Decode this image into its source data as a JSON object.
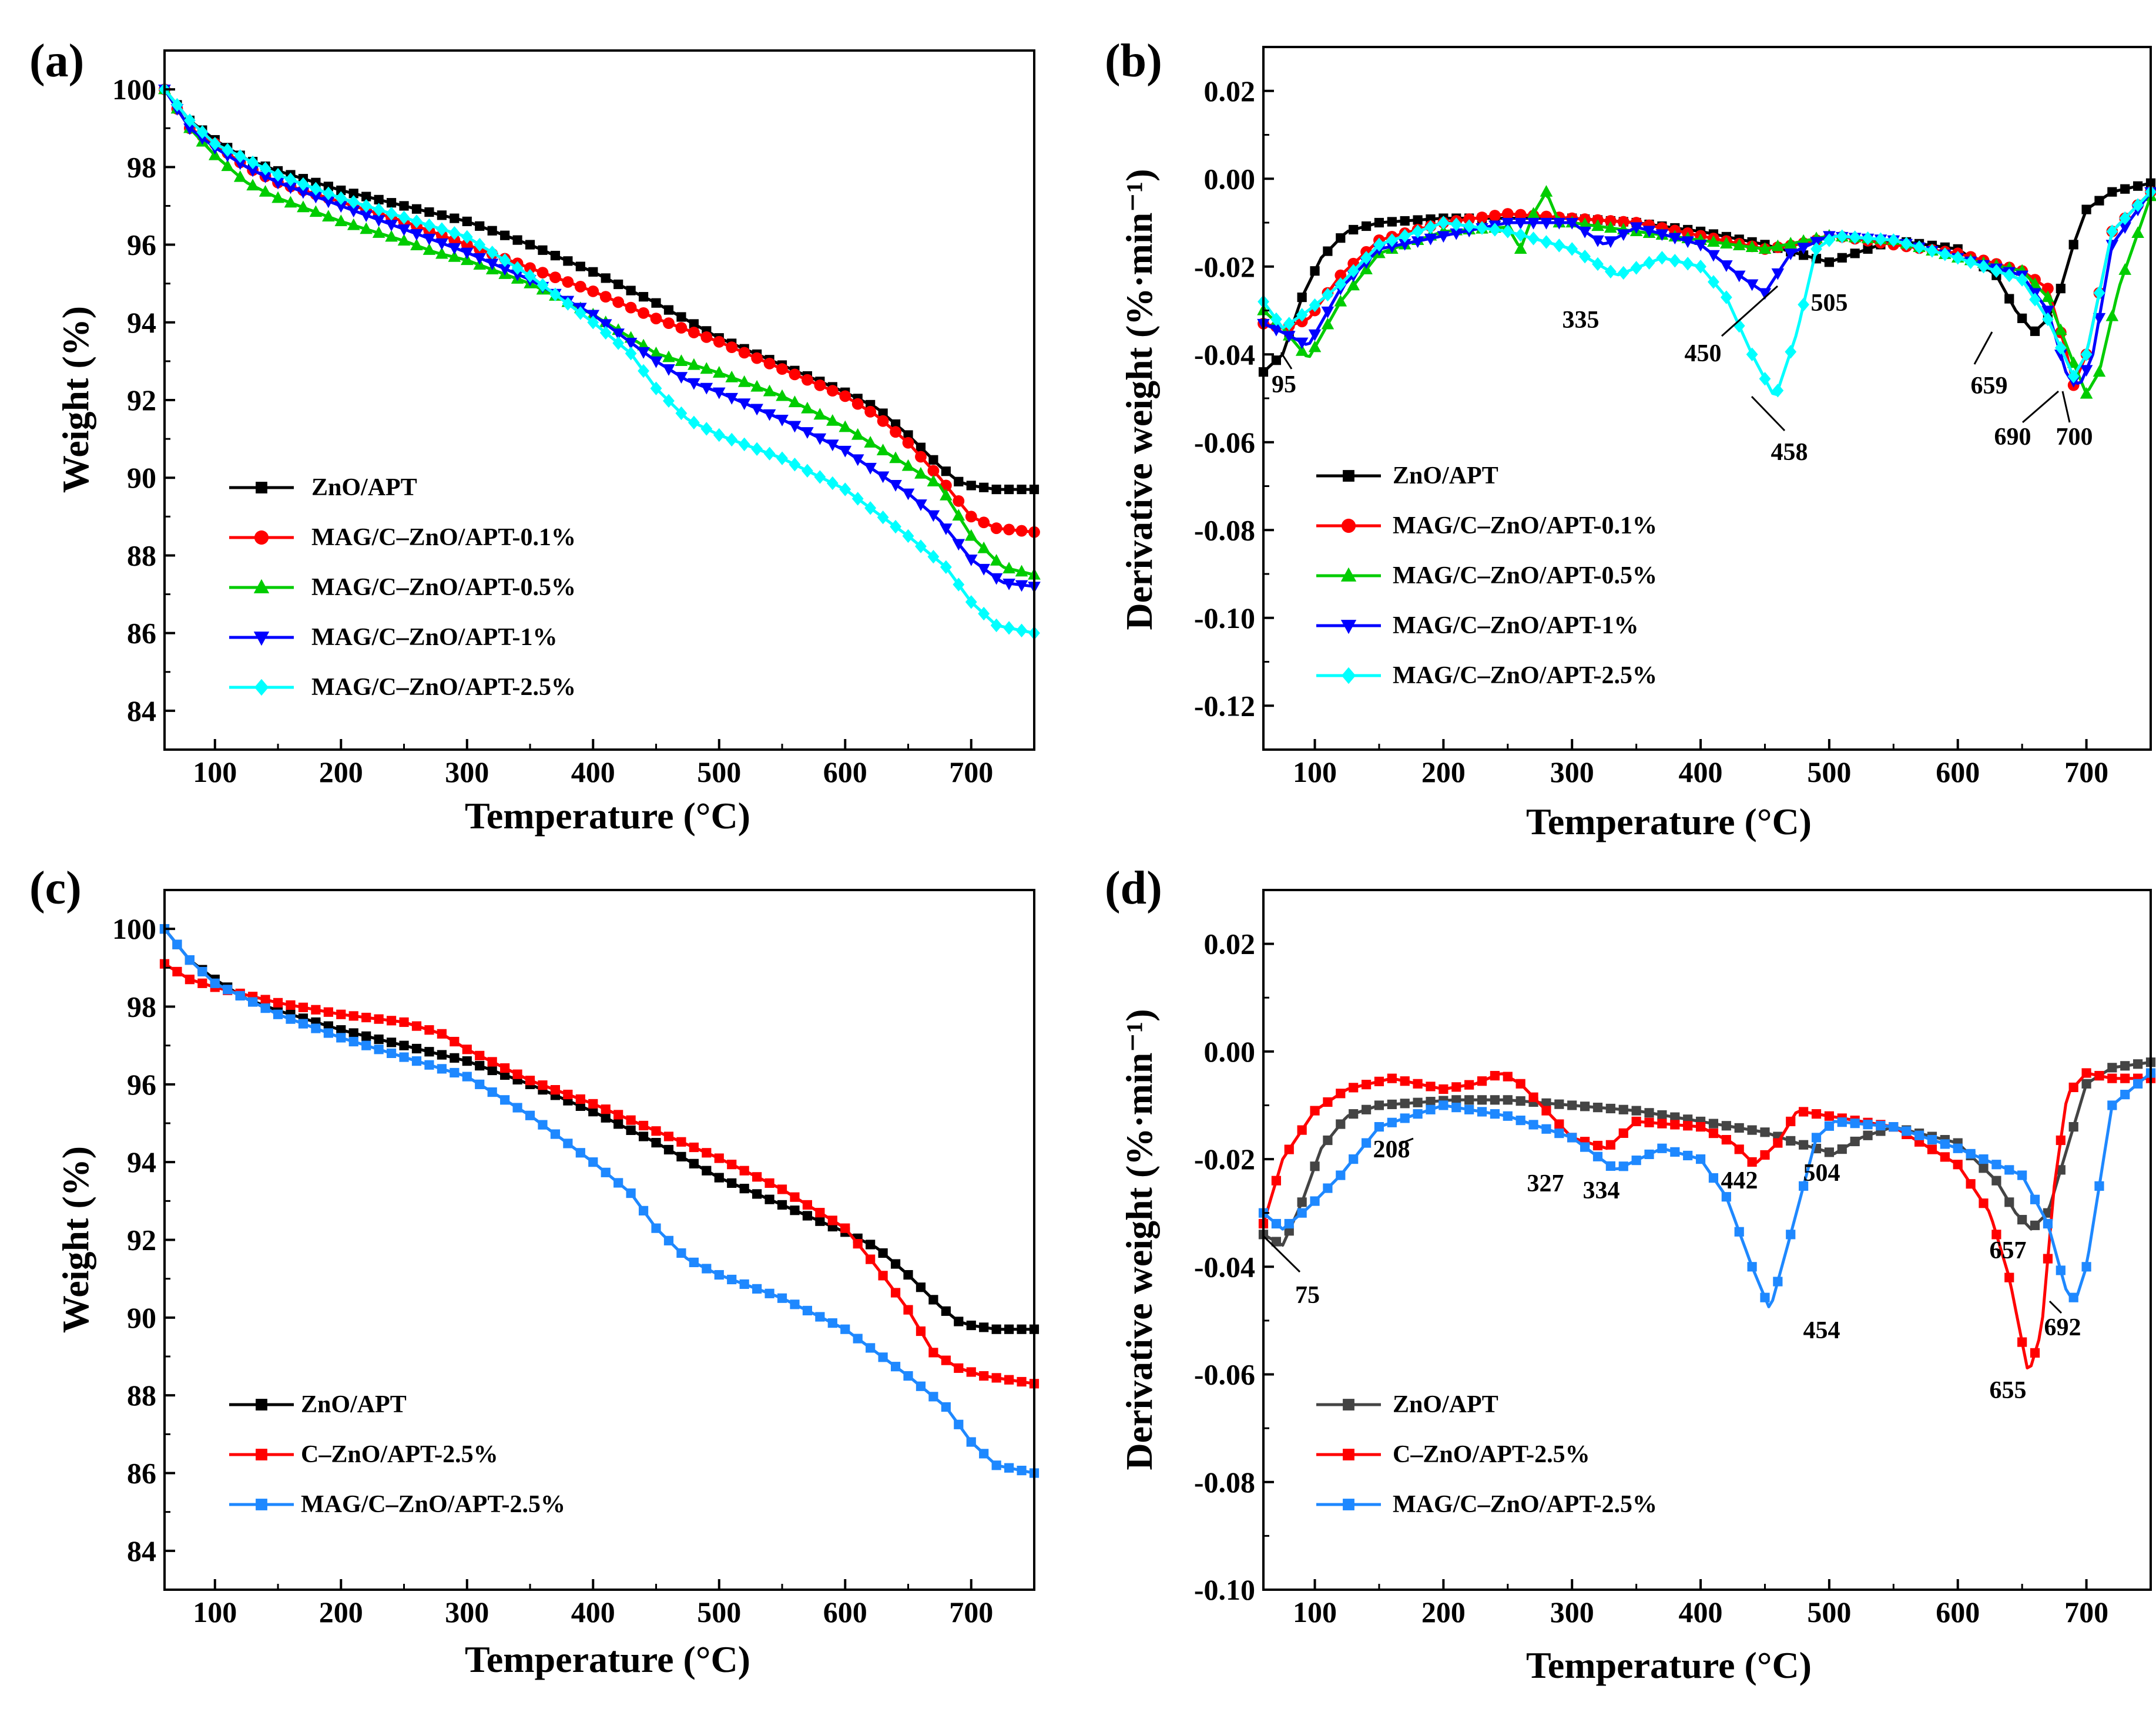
{
  "chart_data": [
    {
      "panel": "(a)",
      "type": "line",
      "xlabel": "Temperature (°C)",
      "ylabel": "Weight (%)",
      "xlim": [
        60,
        750
      ],
      "ylim": [
        83,
        101
      ],
      "xticks": [
        100,
        200,
        300,
        400,
        500,
        600,
        700
      ],
      "yticks": [
        84,
        86,
        88,
        90,
        92,
        94,
        96,
        98,
        100
      ],
      "legend": "lower-left",
      "series": [
        {
          "name": "ZnO/APT",
          "color": "#000000",
          "marker": "square",
          "x": [
            60,
            80,
            100,
            125,
            150,
            200,
            250,
            300,
            350,
            400,
            450,
            500,
            550,
            600,
            625,
            650,
            675,
            690,
            700,
            720,
            750
          ],
          "y": [
            100,
            99.2,
            98.7,
            98.2,
            97.9,
            97.4,
            97.0,
            96.6,
            96.0,
            95.3,
            94.5,
            93.6,
            92.9,
            92.2,
            91.8,
            91.1,
            90.3,
            89.9,
            89.8,
            89.7,
            89.7
          ]
        },
        {
          "name": "MAG/C–ZnO/APT-0.1%",
          "color": "#ff0000",
          "marker": "circle",
          "x": [
            60,
            80,
            100,
            125,
            150,
            200,
            250,
            300,
            350,
            400,
            450,
            500,
            550,
            600,
            625,
            650,
            675,
            690,
            700,
            720,
            750
          ],
          "y": [
            100,
            99.0,
            98.6,
            98.0,
            97.6,
            97.1,
            96.6,
            96.0,
            95.4,
            94.8,
            94.1,
            93.5,
            92.8,
            92.1,
            91.6,
            90.9,
            90.0,
            89.4,
            89.0,
            88.7,
            88.6
          ]
        },
        {
          "name": "MAG/C–ZnO/APT-0.5%",
          "color": "#00cc00",
          "marker": "triangle-up",
          "x": [
            60,
            80,
            100,
            125,
            150,
            200,
            250,
            275,
            300,
            350,
            400,
            450,
            500,
            550,
            600,
            650,
            675,
            700,
            725,
            750
          ],
          "y": [
            100,
            99.0,
            98.3,
            97.6,
            97.2,
            96.6,
            96.1,
            95.8,
            95.6,
            95.0,
            94.2,
            93.2,
            92.7,
            92.1,
            91.3,
            90.3,
            89.8,
            88.5,
            87.7,
            87.5
          ]
        },
        {
          "name": "MAG/C–ZnO/APT-1%",
          "color": "#0000ff",
          "marker": "triangle-down",
          "x": [
            60,
            80,
            100,
            125,
            150,
            200,
            250,
            300,
            350,
            400,
            450,
            475,
            500,
            550,
            600,
            650,
            675,
            700,
            725,
            750
          ],
          "y": [
            100,
            99.0,
            98.5,
            98.0,
            97.6,
            97.0,
            96.4,
            95.8,
            95.1,
            94.2,
            93.0,
            92.5,
            92.2,
            91.5,
            90.7,
            89.6,
            88.9,
            87.9,
            87.3,
            87.2
          ]
        },
        {
          "name": "MAG/C–ZnO/APT-2.5%",
          "color": "#00ffff",
          "marker": "diamond",
          "x": [
            60,
            80,
            100,
            125,
            150,
            200,
            250,
            300,
            350,
            400,
            430,
            450,
            475,
            500,
            550,
            600,
            650,
            680,
            700,
            720,
            750
          ],
          "y": [
            100,
            99.2,
            98.6,
            98.2,
            97.8,
            97.2,
            96.7,
            96.2,
            95.2,
            94.0,
            93.2,
            92.3,
            91.5,
            91.1,
            90.5,
            89.7,
            88.5,
            87.7,
            86.8,
            86.2,
            86.0
          ]
        }
      ]
    },
    {
      "panel": "(b)",
      "type": "line",
      "xlabel": "Temperature (°C)",
      "ylabel": "Derivative weight (%·min⁻¹)",
      "xlim": [
        60,
        750
      ],
      "ylim": [
        -0.13,
        0.03
      ],
      "xticks": [
        100,
        200,
        300,
        400,
        500,
        600,
        700
      ],
      "yticks": [
        0.02,
        0.0,
        -0.02,
        -0.04,
        -0.06,
        -0.08,
        -0.1,
        -0.12
      ],
      "legend": "lower-left",
      "series": [
        {
          "name": "ZnO/APT",
          "color": "#000000",
          "marker": "square",
          "x": [
            60,
            75,
            90,
            105,
            125,
            150,
            200,
            250,
            300,
            350,
            400,
            450,
            475,
            500,
            520,
            550,
            600,
            630,
            645,
            659,
            670,
            680,
            690,
            700,
            720,
            750
          ],
          "y": [
            -0.044,
            -0.04,
            -0.027,
            -0.018,
            -0.012,
            -0.01,
            -0.009,
            -0.009,
            -0.009,
            -0.01,
            -0.012,
            -0.015,
            -0.017,
            -0.019,
            -0.017,
            -0.014,
            -0.016,
            -0.022,
            -0.03,
            -0.035,
            -0.032,
            -0.025,
            -0.015,
            -0.007,
            -0.003,
            -0.001
          ]
        },
        {
          "name": "MAG/C–ZnO/APT-0.1%",
          "color": "#ff0000",
          "marker": "circle",
          "x": [
            60,
            75,
            95,
            120,
            150,
            200,
            250,
            300,
            350,
            400,
            450,
            475,
            505,
            550,
            600,
            650,
            670,
            685,
            690,
            700,
            720,
            750
          ],
          "y": [
            -0.033,
            -0.034,
            -0.032,
            -0.022,
            -0.014,
            -0.01,
            -0.008,
            -0.009,
            -0.01,
            -0.013,
            -0.016,
            -0.015,
            -0.013,
            -0.015,
            -0.017,
            -0.021,
            -0.025,
            -0.04,
            -0.047,
            -0.04,
            -0.012,
            -0.003
          ]
        },
        {
          "name": "MAG/C–ZnO/APT-0.5%",
          "color": "#00cc00",
          "marker": "triangle-up",
          "x": [
            60,
            75,
            95,
            120,
            150,
            200,
            250,
            260,
            270,
            280,
            290,
            300,
            350,
            400,
            450,
            500,
            550,
            600,
            650,
            670,
            690,
            700,
            710,
            725,
            750
          ],
          "y": [
            -0.03,
            -0.034,
            -0.041,
            -0.028,
            -0.017,
            -0.012,
            -0.011,
            -0.016,
            -0.008,
            -0.003,
            -0.01,
            -0.01,
            -0.012,
            -0.014,
            -0.016,
            -0.013,
            -0.014,
            -0.018,
            -0.021,
            -0.027,
            -0.042,
            -0.049,
            -0.044,
            -0.025,
            -0.004
          ]
        },
        {
          "name": "MAG/C–ZnO/APT-1%",
          "color": "#0000ff",
          "marker": "triangle-down",
          "x": [
            60,
            75,
            95,
            120,
            150,
            200,
            250,
            300,
            325,
            350,
            400,
            430,
            450,
            470,
            500,
            550,
            600,
            650,
            670,
            685,
            695,
            705,
            720,
            750
          ],
          "y": [
            -0.033,
            -0.035,
            -0.038,
            -0.025,
            -0.016,
            -0.013,
            -0.01,
            -0.01,
            -0.015,
            -0.011,
            -0.015,
            -0.022,
            -0.026,
            -0.017,
            -0.013,
            -0.014,
            -0.018,
            -0.022,
            -0.03,
            -0.045,
            -0.047,
            -0.04,
            -0.015,
            -0.003
          ]
        },
        {
          "name": "MAG/C–ZnO/APT-2.5%",
          "color": "#00ffff",
          "marker": "diamond",
          "x": [
            60,
            75,
            95,
            120,
            150,
            200,
            250,
            300,
            335,
            370,
            400,
            420,
            440,
            458,
            475,
            490,
            505,
            550,
            600,
            650,
            670,
            690,
            700,
            720,
            750
          ],
          "y": [
            -0.028,
            -0.034,
            -0.03,
            -0.024,
            -0.015,
            -0.01,
            -0.012,
            -0.016,
            -0.022,
            -0.018,
            -0.02,
            -0.027,
            -0.04,
            -0.05,
            -0.035,
            -0.016,
            -0.013,
            -0.014,
            -0.018,
            -0.023,
            -0.032,
            -0.045,
            -0.04,
            -0.012,
            -0.003
          ]
        }
      ],
      "annotations": [
        "95",
        "335",
        "450",
        "458",
        "505",
        "659",
        "690",
        "700"
      ]
    },
    {
      "panel": "(c)",
      "type": "line",
      "xlabel": "Temperature (°C)",
      "ylabel": "Weight (%)",
      "xlim": [
        60,
        750
      ],
      "ylim": [
        83,
        101
      ],
      "xticks": [
        100,
        200,
        300,
        400,
        500,
        600,
        700
      ],
      "yticks": [
        84,
        86,
        88,
        90,
        92,
        94,
        96,
        98,
        100
      ],
      "legend": "lower-left",
      "series": [
        {
          "name": "ZnO/APT",
          "color": "#000000",
          "marker": "square",
          "x": [
            60,
            80,
            100,
            125,
            150,
            200,
            250,
            300,
            350,
            400,
            450,
            500,
            550,
            600,
            625,
            650,
            675,
            690,
            700,
            720,
            750
          ],
          "y": [
            100,
            99.2,
            98.7,
            98.2,
            97.9,
            97.4,
            97.0,
            96.6,
            96.0,
            95.3,
            94.5,
            93.6,
            92.9,
            92.2,
            91.8,
            91.1,
            90.3,
            89.9,
            89.8,
            89.7,
            89.7
          ]
        },
        {
          "name": "C–ZnO/APT-2.5%",
          "color": "#ff0000",
          "marker": "square",
          "x": [
            60,
            80,
            100,
            150,
            200,
            250,
            280,
            300,
            350,
            400,
            450,
            500,
            550,
            600,
            625,
            650,
            670,
            690,
            710,
            750
          ],
          "y": [
            99.1,
            98.7,
            98.5,
            98.1,
            97.8,
            97.6,
            97.3,
            96.9,
            96.1,
            95.5,
            94.8,
            94.1,
            93.3,
            92.3,
            91.3,
            90.2,
            89.1,
            88.7,
            88.5,
            88.3
          ]
        },
        {
          "name": "MAG/C–ZnO/APT-2.5%",
          "color": "#1e88ff",
          "marker": "square",
          "x": [
            60,
            80,
            100,
            125,
            150,
            200,
            250,
            300,
            350,
            400,
            430,
            450,
            475,
            500,
            550,
            600,
            650,
            680,
            700,
            720,
            750
          ],
          "y": [
            100,
            99.2,
            98.6,
            98.2,
            97.8,
            97.2,
            96.7,
            96.2,
            95.2,
            94.0,
            93.2,
            92.3,
            91.5,
            91.1,
            90.5,
            89.7,
            88.5,
            87.7,
            86.8,
            86.2,
            86.0
          ]
        }
      ]
    },
    {
      "panel": "(d)",
      "type": "line",
      "xlabel": "Temperature (°C)",
      "ylabel": "Derivative weight (%·min⁻¹)",
      "xlim": [
        60,
        750
      ],
      "ylim": [
        -0.1,
        0.03
      ],
      "xticks": [
        100,
        200,
        300,
        400,
        500,
        600,
        700
      ],
      "yticks": [
        0.02,
        0.0,
        -0.02,
        -0.04,
        -0.06,
        -0.08,
        -0.1
      ],
      "legend": "lower-left",
      "series": [
        {
          "name": "ZnO/APT",
          "color": "#444444",
          "marker": "square",
          "x": [
            60,
            75,
            90,
            105,
            125,
            150,
            208,
            250,
            300,
            350,
            400,
            450,
            475,
            504,
            525,
            550,
            600,
            630,
            645,
            657,
            670,
            680,
            690,
            700,
            720,
            750
          ],
          "y": [
            -0.034,
            -0.036,
            -0.028,
            -0.018,
            -0.012,
            -0.01,
            -0.009,
            -0.009,
            -0.01,
            -0.011,
            -0.013,
            -0.015,
            -0.017,
            -0.019,
            -0.016,
            -0.014,
            -0.017,
            -0.024,
            -0.03,
            -0.033,
            -0.03,
            -0.022,
            -0.014,
            -0.006,
            -0.003,
            -0.002
          ]
        },
        {
          "name": "C–ZnO/APT-2.5%",
          "color": "#ff0000",
          "marker": "square",
          "x": [
            60,
            75,
            100,
            125,
            160,
            200,
            225,
            245,
            260,
            280,
            300,
            327,
            350,
            400,
            425,
            442,
            460,
            475,
            500,
            550,
            600,
            625,
            640,
            655,
            665,
            675,
            685,
            700,
            720,
            750
          ],
          "y": [
            -0.032,
            -0.02,
            -0.011,
            -0.007,
            -0.005,
            -0.007,
            -0.006,
            -0.004,
            -0.006,
            -0.011,
            -0.016,
            -0.018,
            -0.013,
            -0.014,
            -0.017,
            -0.021,
            -0.017,
            -0.011,
            -0.012,
            -0.014,
            -0.021,
            -0.03,
            -0.042,
            -0.06,
            -0.052,
            -0.025,
            -0.008,
            -0.004,
            -0.005,
            -0.005
          ]
        },
        {
          "name": "MAG/C–ZnO/APT-2.5%",
          "color": "#1e88ff",
          "marker": "square",
          "x": [
            60,
            75,
            95,
            120,
            150,
            200,
            250,
            300,
            334,
            370,
            400,
            420,
            440,
            454,
            470,
            490,
            504,
            550,
            600,
            650,
            670,
            685,
            692,
            700,
            710,
            720,
            750
          ],
          "y": [
            -0.03,
            -0.033,
            -0.029,
            -0.023,
            -0.014,
            -0.01,
            -0.012,
            -0.016,
            -0.022,
            -0.018,
            -0.02,
            -0.027,
            -0.04,
            -0.048,
            -0.034,
            -0.016,
            -0.013,
            -0.014,
            -0.018,
            -0.023,
            -0.032,
            -0.045,
            -0.046,
            -0.04,
            -0.025,
            -0.01,
            -0.004
          ]
        }
      ],
      "annotations": [
        "75",
        "208",
        "327",
        "334",
        "442",
        "454",
        "504",
        "655",
        "657",
        "692"
      ]
    }
  ]
}
